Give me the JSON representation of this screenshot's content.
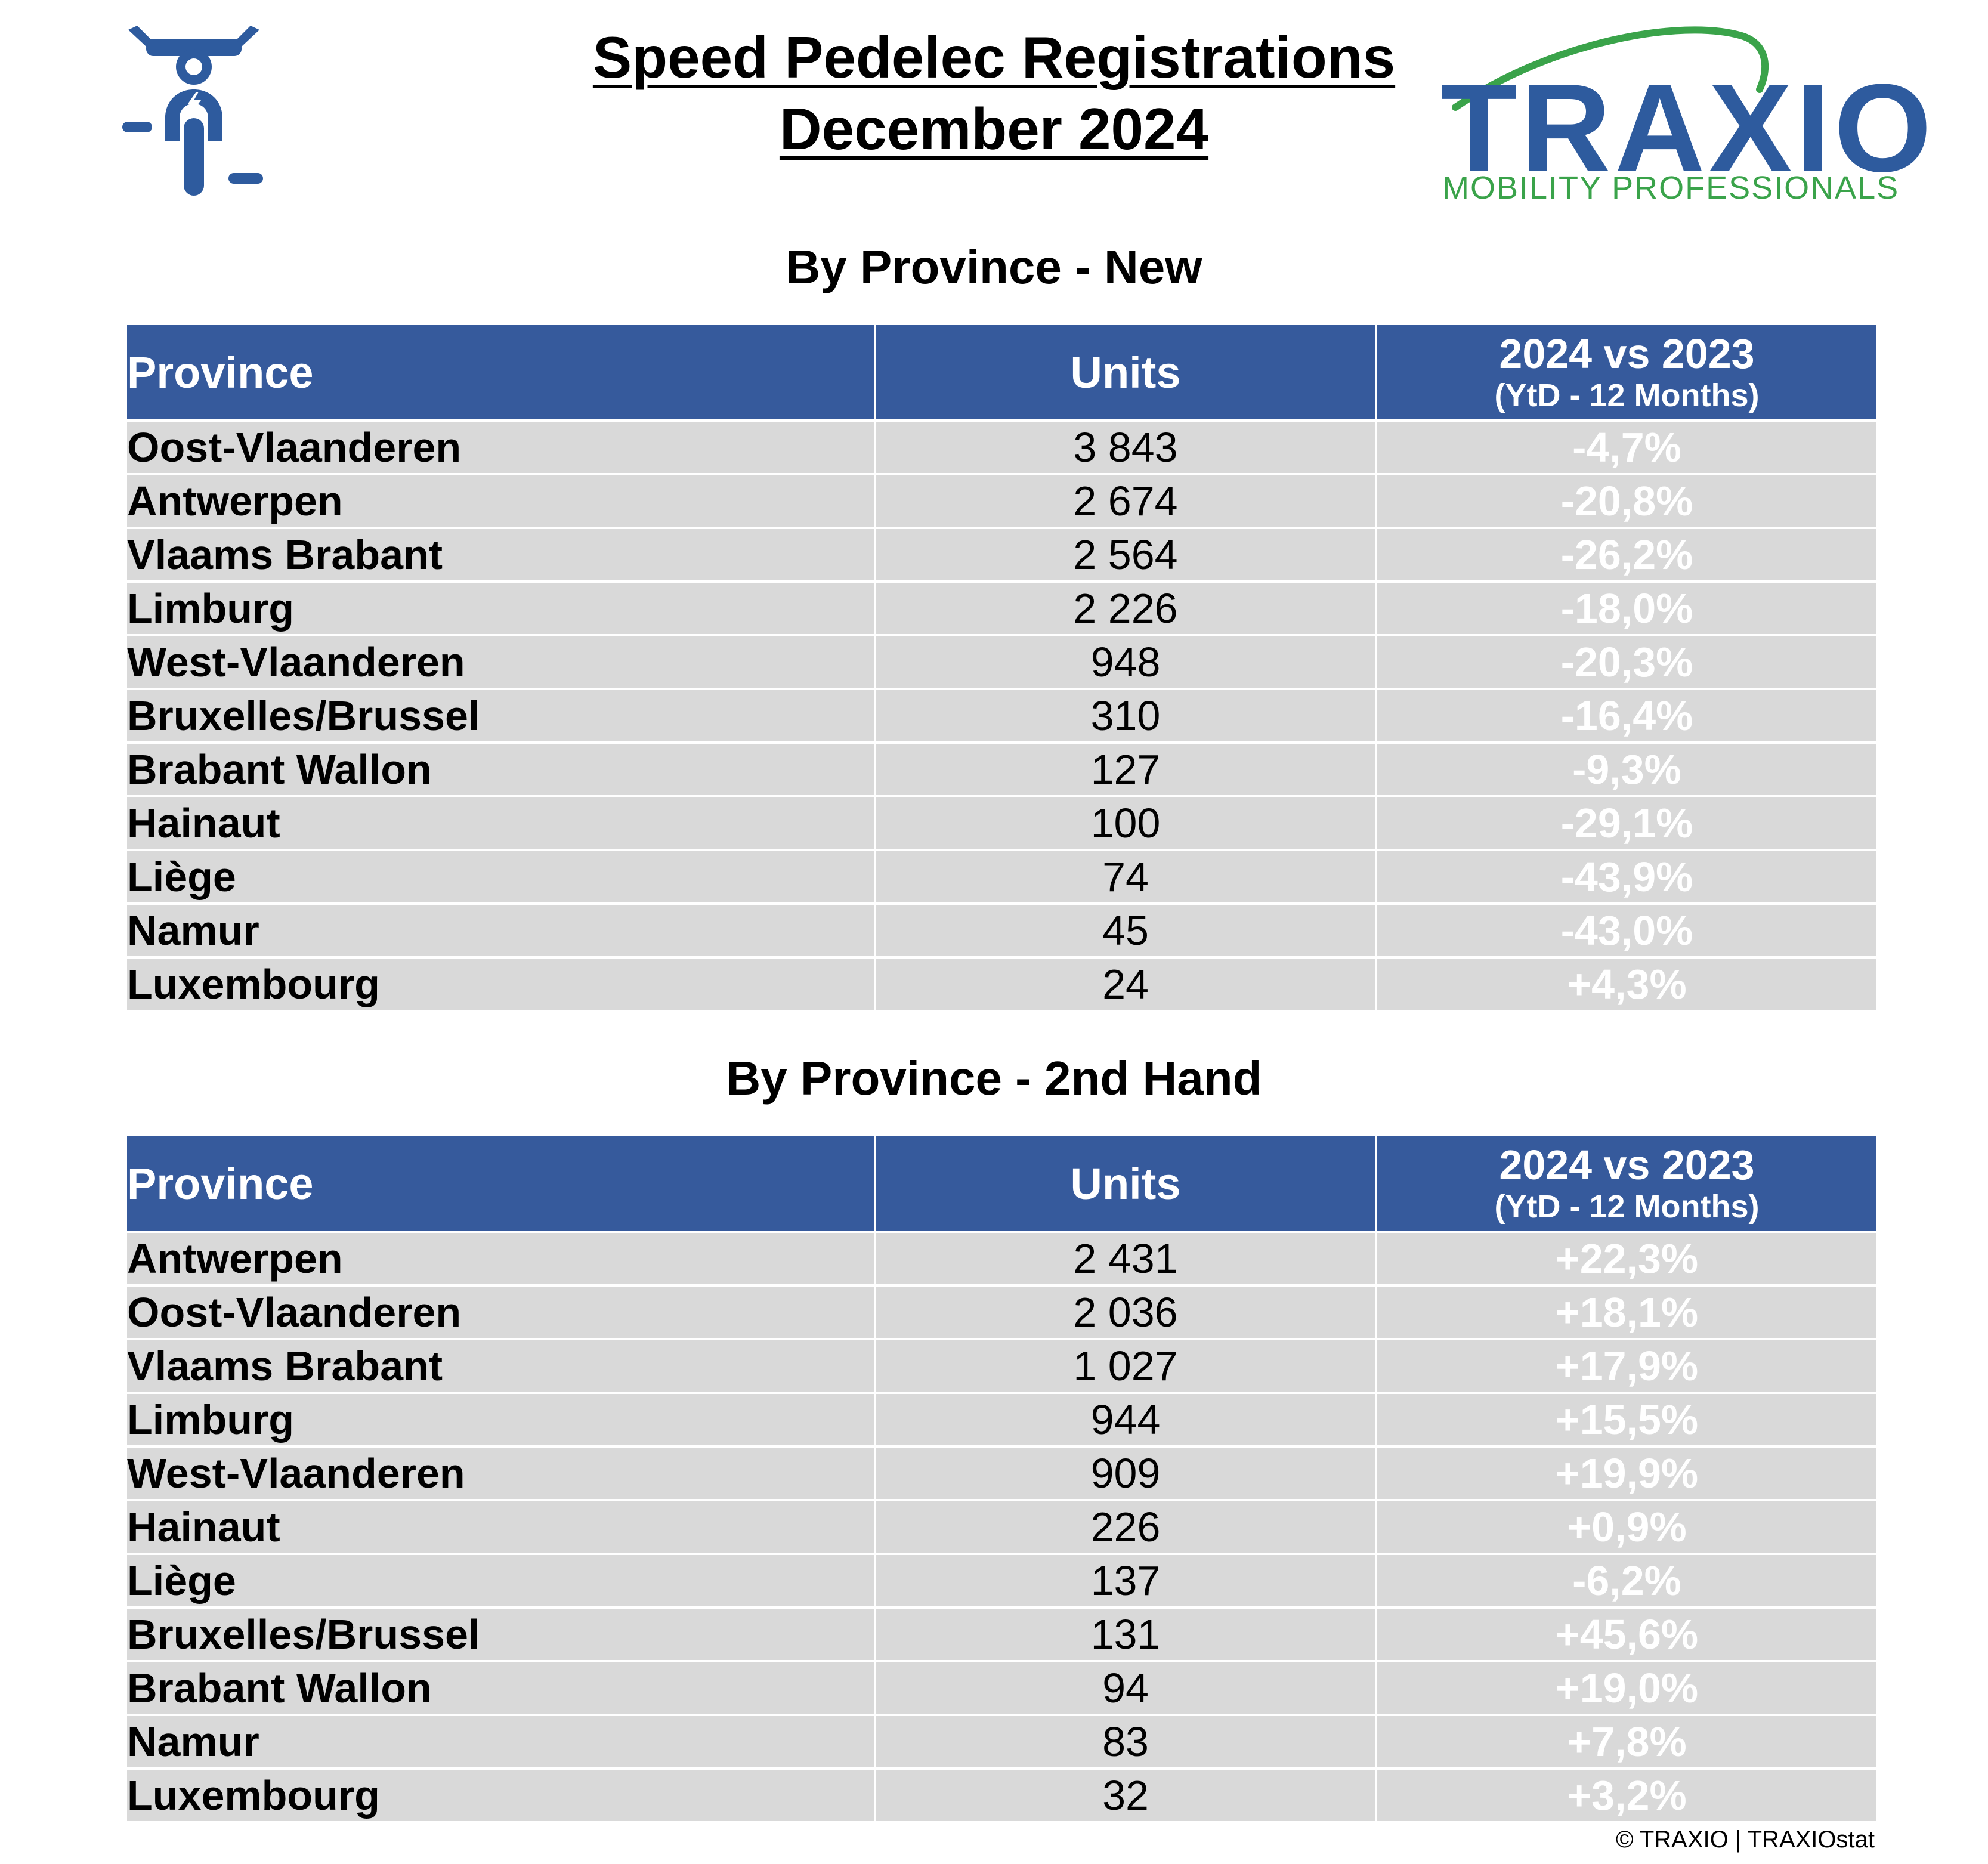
{
  "title_line1": "Speed Pedelec Registrations",
  "title_line2": "December 2024",
  "logo": {
    "name": "TRAXIO",
    "tagline": "MOBILITY PROFESSIONALS",
    "icon": "speed-pedelec-rider-icon"
  },
  "colors": {
    "header": "#365a9c",
    "negative": "#ff0000",
    "positive": "#589a55",
    "row": "#d9d9d9"
  },
  "tables": [
    {
      "title": "By Province - New",
      "headers": {
        "province": "Province",
        "units": "Units",
        "cmp_line1": "2024 vs 2023",
        "cmp_line2": "(YtD - 12 Months)"
      },
      "rows": [
        {
          "province": "Oost-Vlaanderen",
          "units": "3 843",
          "change": "-4,7%"
        },
        {
          "province": "Antwerpen",
          "units": "2 674",
          "change": "-20,8%"
        },
        {
          "province": "Vlaams Brabant",
          "units": "2 564",
          "change": "-26,2%"
        },
        {
          "province": "Limburg",
          "units": "2 226",
          "change": "-18,0%"
        },
        {
          "province": "West-Vlaanderen",
          "units": "948",
          "change": "-20,3%"
        },
        {
          "province": "Bruxelles/Brussel",
          "units": "310",
          "change": "-16,4%"
        },
        {
          "province": "Brabant Wallon",
          "units": "127",
          "change": "-9,3%"
        },
        {
          "province": "Hainaut",
          "units": "100",
          "change": "-29,1%"
        },
        {
          "province": "Liège",
          "units": "74",
          "change": "-43,9%"
        },
        {
          "province": "Namur",
          "units": "45",
          "change": "-43,0%"
        },
        {
          "province": "Luxembourg",
          "units": "24",
          "change": "+4,3%"
        }
      ]
    },
    {
      "title": "By Province - 2nd Hand",
      "headers": {
        "province": "Province",
        "units": "Units",
        "cmp_line1": "2024 vs 2023",
        "cmp_line2": "(YtD - 12 Months)"
      },
      "rows": [
        {
          "province": "Antwerpen",
          "units": "2 431",
          "change": "+22,3%"
        },
        {
          "province": "Oost-Vlaanderen",
          "units": "2 036",
          "change": "+18,1%"
        },
        {
          "province": "Vlaams Brabant",
          "units": "1 027",
          "change": "+17,9%"
        },
        {
          "province": "Limburg",
          "units": "944",
          "change": "+15,5%"
        },
        {
          "province": "West-Vlaanderen",
          "units": "909",
          "change": "+19,9%"
        },
        {
          "province": "Hainaut",
          "units": "226",
          "change": "+0,9%"
        },
        {
          "province": "Liège",
          "units": "137",
          "change": "-6,2%"
        },
        {
          "province": "Bruxelles/Brussel",
          "units": "131",
          "change": "+45,6%"
        },
        {
          "province": "Brabant Wallon",
          "units": "94",
          "change": "+19,0%"
        },
        {
          "province": "Namur",
          "units": "83",
          "change": "+7,8%"
        },
        {
          "province": "Luxembourg",
          "units": "32",
          "change": "+3,2%"
        }
      ]
    }
  ],
  "credit": "© TRAXIO | TRAXIOstat"
}
